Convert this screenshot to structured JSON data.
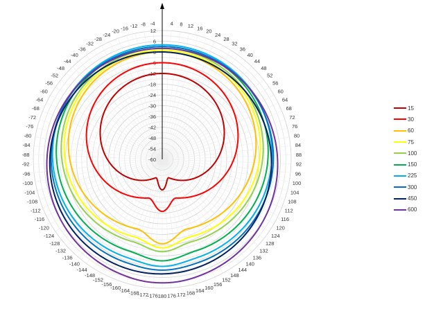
{
  "chart_data": {
    "type": "polar-line",
    "grid": true,
    "legend_position": "right",
    "angular_axis": {
      "ticks_left": [
        "-4",
        "-8",
        "-12",
        "-16",
        "-20",
        "-24",
        "-28",
        "-32",
        "-36",
        "-40",
        "-44",
        "-48",
        "-52",
        "-56",
        "-60",
        "-64",
        "-68",
        "-72",
        "-76",
        "-80",
        "-84",
        "-88",
        "-92",
        "-96",
        "-100",
        "-104",
        "-108",
        "-112",
        "-116",
        "-120",
        "-124",
        "-128",
        "-132",
        "-136",
        "-140",
        "-144",
        "-148",
        "-152",
        "-156",
        "-160",
        "-164",
        "-168",
        "-172",
        "-176"
      ],
      "ticks_right": [
        "4",
        "8",
        "12",
        "16",
        "20",
        "24",
        "28",
        "32",
        "36",
        "40",
        "44",
        "48",
        "52",
        "56",
        "60",
        "64",
        "68",
        "72",
        "76",
        "80",
        "84",
        "88",
        "92",
        "96",
        "100",
        "104",
        "108",
        "112",
        "116",
        "120",
        "124",
        "128",
        "132",
        "136",
        "140",
        "144",
        "148",
        "152",
        "156",
        "160",
        "164",
        "168",
        "172",
        "176"
      ],
      "bottom_label": "180"
    },
    "radial_axis": {
      "range": [
        -60,
        12
      ],
      "tick_labels": [
        "12",
        "6",
        "0",
        "-6",
        "-12",
        "-18",
        "-24",
        "-30",
        "-36",
        "-42",
        "-48",
        "-54",
        "-60"
      ]
    },
    "series": [
      {
        "name": "15",
        "color": "#c00000",
        "front": -12,
        "back": -51,
        "notch": -42,
        "front_width": 0.85,
        "back_width": 0.35
      },
      {
        "name": "30",
        "color": "#ff0000",
        "front": -6,
        "back": -39,
        "notch": -30,
        "front_width": 0.8,
        "back_width": 0.32
      },
      {
        "name": "60",
        "color": "#ffc000",
        "front": 0,
        "back": -20,
        "notch": -12,
        "front_width": 0.78,
        "back_width": 0.35
      },
      {
        "name": "75",
        "color": "#ffff00",
        "front": 1,
        "back": -15,
        "notch": -10,
        "front_width": 0.78,
        "back_width": 0.35
      },
      {
        "name": "100",
        "color": "#92d050",
        "front": 2,
        "back": -12,
        "notch": -8,
        "front_width": 0.8,
        "back_width": 0.35
      },
      {
        "name": "150",
        "color": "#00b050",
        "front": 3,
        "back": -6,
        "notch": -3,
        "front_width": 0.85,
        "back_width": 0.3
      },
      {
        "name": "225",
        "color": "#00b0f0",
        "front": 4,
        "back": -2,
        "notch": 0,
        "front_width": 0.9,
        "back_width": 0.3
      },
      {
        "name": "300",
        "color": "#0070c0",
        "front": 3,
        "back": 1,
        "notch": 2,
        "front_width": 0.95,
        "back_width": 0.25
      },
      {
        "name": "450",
        "color": "#002060",
        "front": 0,
        "back": 4,
        "notch": 4,
        "front_width": 0.9,
        "back_width": 0.2,
        "tilt": -0.9
      },
      {
        "name": "600",
        "color": "#7030a0",
        "front": 2,
        "back": 9,
        "notch": 9,
        "front_width": 0.6,
        "back_width": 0.2
      }
    ]
  }
}
